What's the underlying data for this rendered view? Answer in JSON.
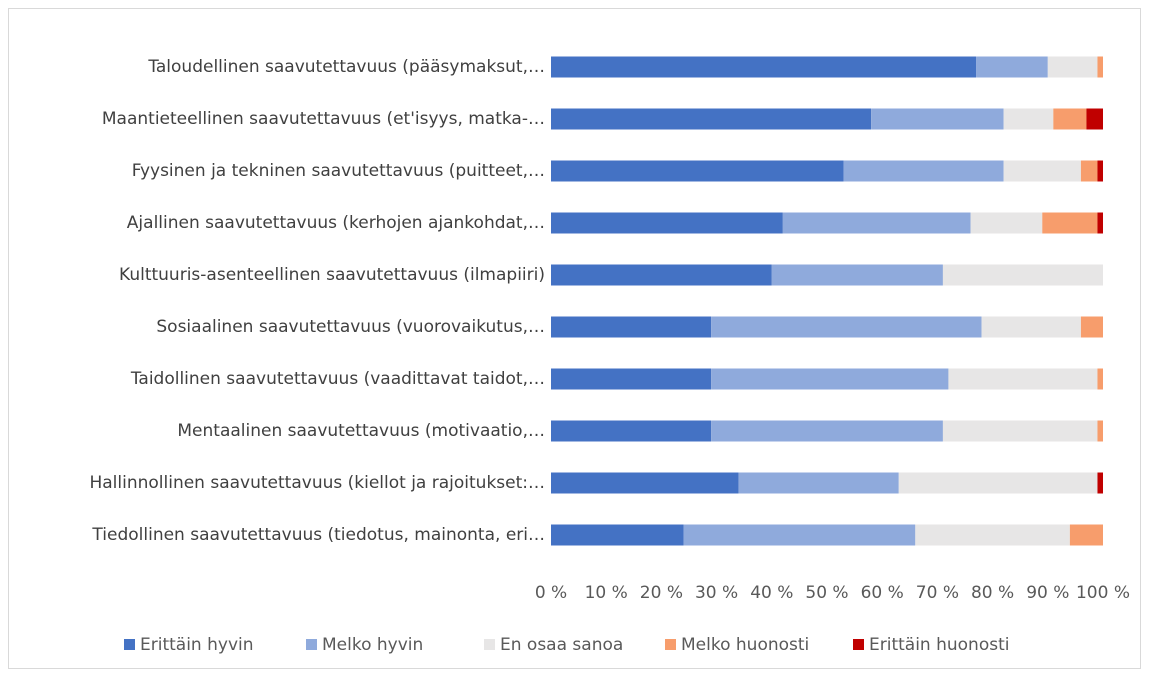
{
  "chart_data": {
    "type": "stacked_barh",
    "categories": [
      "Taloudellinen saavutettavuus (pääsymaksut,…",
      "Maantieteellinen saavutettavuus (et'isyys, matka-…",
      "Fyysinen ja tekninen saavutettavuus (puitteet,…",
      "Ajallinen saavutettavuus (kerhojen ajankohdat,…",
      "Kulttuuris-asenteellinen saavutettavuus (ilmapiiri)",
      "Sosiaalinen saavutettavuus (vuorovaikutus,…",
      "Taidollinen saavutettavuus (vaadittavat taidot,…",
      "Mentaalinen saavutettavuus (motivaatio,…",
      "Hallinnollinen saavutettavuus (kiellot ja rajoitukset:…",
      "Tiedollinen saavutettavuus (tiedotus, mainonta, eri…"
    ],
    "series": [
      {
        "name": "Erittäin hyvin",
        "color": "#4472c4",
        "values": [
          77,
          58,
          53,
          42,
          40,
          29,
          29,
          29,
          34,
          24
        ]
      },
      {
        "name": "Melko hyvin",
        "color": "#8faadc",
        "values": [
          13,
          24,
          29,
          34,
          31,
          49,
          43,
          42,
          29,
          42
        ]
      },
      {
        "name": "En osaa sanoa",
        "color": "#e7e6e6",
        "values": [
          9,
          9,
          14,
          13,
          29,
          18,
          27,
          28,
          36,
          28
        ]
      },
      {
        "name": "Melko huonosti",
        "color": "#f79d6c",
        "values": [
          1,
          6,
          3,
          10,
          0,
          4,
          1,
          1,
          0,
          6
        ]
      },
      {
        "name": "Erittäin huonosti",
        "color": "#c00000",
        "values": [
          0,
          3,
          1,
          1,
          0,
          0,
          0,
          0,
          1,
          0
        ]
      }
    ],
    "xlim": [
      0,
      100
    ],
    "xticks": [
      {
        "value": 0,
        "label": "0 %"
      },
      {
        "value": 10,
        "label": "10 %"
      },
      {
        "value": 20,
        "label": "20 %"
      },
      {
        "value": 30,
        "label": "30 %"
      },
      {
        "value": 40,
        "label": "40 %"
      },
      {
        "value": 50,
        "label": "50 %"
      },
      {
        "value": 60,
        "label": "60 %"
      },
      {
        "value": 70,
        "label": "70 %"
      },
      {
        "value": 80,
        "label": "80 %"
      },
      {
        "value": 90,
        "label": "90 %"
      },
      {
        "value": 100,
        "label": "100 %"
      }
    ],
    "legend": "bottom"
  }
}
